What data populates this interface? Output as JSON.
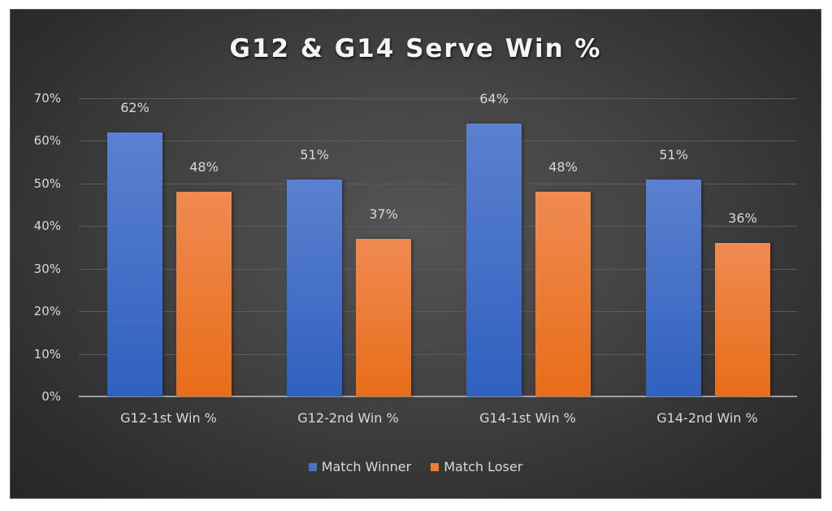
{
  "chart_data": {
    "type": "bar",
    "title": "G12 & G14 Serve Win %",
    "categories": [
      "G12-1st Win %",
      "G12-2nd Win %",
      "G14-1st Win %",
      "G14-2nd Win %"
    ],
    "series": [
      {
        "name": "Match Winner",
        "color": "#4472c4",
        "values": [
          62,
          51,
          64,
          51
        ],
        "labels": [
          "62%",
          "51%",
          "64%",
          "51%"
        ]
      },
      {
        "name": "Match Loser",
        "color": "#ed7d31",
        "values": [
          48,
          37,
          48,
          36
        ],
        "labels": [
          "48%",
          "37%",
          "48%",
          "36%"
        ]
      }
    ],
    "xlabel": "",
    "ylabel": "",
    "ylim": [
      0,
      70
    ],
    "yticks": [
      "0%",
      "10%",
      "20%",
      "30%",
      "40%",
      "50%",
      "60%",
      "70%"
    ],
    "grid": true,
    "legend_position": "bottom",
    "background": "dark-gradient"
  }
}
